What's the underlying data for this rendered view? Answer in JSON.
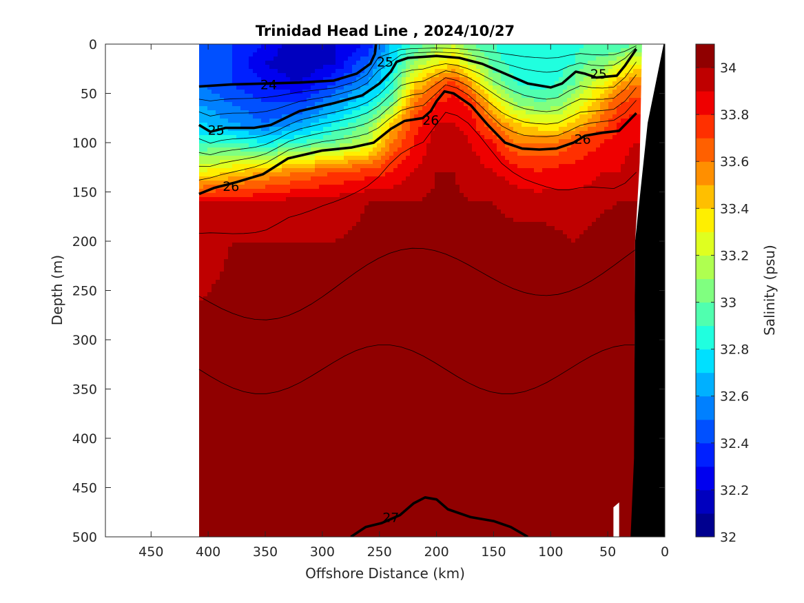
{
  "chart_data": {
    "type": "heatmap",
    "title": "Trinidad Head Line , 2024/10/27",
    "xlabel": "Offshore Distance (km)",
    "ylabel": "Depth (m)",
    "xlim": [
      490,
      0
    ],
    "ylim": [
      500,
      0
    ],
    "x_ticks": [
      "450",
      "400",
      "350",
      "300",
      "250",
      "200",
      "150",
      "100",
      "50",
      "0"
    ],
    "y_ticks": [
      "0",
      "50",
      "100",
      "150",
      "200",
      "250",
      "300",
      "350",
      "400",
      "450",
      "500"
    ],
    "colorbar": {
      "label": "Salinity (psu)",
      "range": [
        32,
        34.1
      ],
      "tick_labels": [
        "32",
        "32.2",
        "32.4",
        "32.6",
        "32.8",
        "33",
        "33.2",
        "33.4",
        "33.6",
        "33.8",
        "34"
      ],
      "colors": [
        "#00008f",
        "#0000bf",
        "#0000ef",
        "#0020ff",
        "#0050ff",
        "#0080ff",
        "#00b0ff",
        "#00e0ff",
        "#20ffdf",
        "#50ffaf",
        "#80ff80",
        "#afff50",
        "#dfff20",
        "#ffef00",
        "#ffbf00",
        "#ff8f00",
        "#ff6000",
        "#ff3000",
        "#ef0000",
        "#bf0000",
        "#900000"
      ]
    },
    "data_extent_km": [
      408,
      0
    ],
    "salinity_profiles": {
      "distance_km": [
        408,
        380,
        350,
        320,
        290,
        260,
        240,
        220,
        200,
        185,
        170,
        150,
        130,
        110,
        95,
        80,
        70,
        55,
        40,
        28
      ],
      "depth_m": [
        0,
        20,
        40,
        60,
        80,
        100,
        130,
        160,
        200,
        260,
        320,
        380,
        440,
        500
      ],
      "salinity_psu": [
        [
          32.5,
          32.5,
          32.5,
          32.6,
          32.7,
          32.9,
          33.3,
          33.9,
          33.95,
          34.0,
          34.05,
          34.1,
          34.12,
          34.15
        ],
        [
          32.4,
          32.4,
          32.4,
          32.5,
          32.6,
          32.9,
          33.4,
          33.9,
          34.0,
          34.02,
          34.05,
          34.1,
          34.12,
          34.15
        ],
        [
          32.3,
          32.2,
          32.3,
          32.4,
          32.5,
          32.8,
          33.5,
          33.9,
          34.0,
          34.02,
          34.05,
          34.1,
          34.12,
          34.15
        ],
        [
          32.1,
          32.1,
          32.2,
          32.4,
          32.6,
          32.9,
          33.6,
          33.95,
          34.0,
          34.02,
          34.05,
          34.1,
          34.15,
          34.18
        ],
        [
          32.2,
          32.2,
          32.4,
          32.6,
          32.8,
          33.0,
          33.7,
          33.95,
          34.0,
          34.02,
          34.1,
          34.12,
          34.15,
          34.18
        ],
        [
          32.3,
          32.5,
          32.6,
          32.8,
          33.0,
          33.2,
          33.75,
          34.0,
          34.02,
          34.05,
          34.12,
          34.15,
          34.18,
          34.2
        ],
        [
          32.7,
          32.75,
          32.85,
          33.0,
          33.4,
          33.6,
          33.8,
          34.0,
          34.02,
          34.08,
          34.12,
          34.12,
          34.15,
          34.18
        ],
        [
          32.9,
          33.1,
          33.4,
          33.6,
          33.75,
          33.8,
          33.9,
          34.0,
          34.05,
          34.1,
          34.12,
          34.15,
          34.18,
          34.2
        ],
        [
          33.1,
          33.3,
          33.6,
          33.8,
          33.9,
          33.95,
          34.0,
          34.02,
          34.05,
          34.12,
          34.12,
          34.15,
          34.2,
          34.2
        ],
        [
          33.2,
          33.4,
          33.75,
          33.85,
          33.9,
          33.95,
          34.0,
          34.02,
          34.05,
          34.08,
          34.1,
          34.15,
          34.18,
          34.2
        ],
        [
          33.0,
          33.2,
          33.5,
          33.75,
          33.85,
          33.9,
          33.95,
          34.0,
          34.05,
          34.12,
          34.12,
          34.15,
          34.18,
          34.2
        ],
        [
          32.9,
          32.95,
          33.1,
          33.4,
          33.6,
          33.8,
          33.9,
          34.0,
          34.05,
          34.15,
          34.12,
          34.15,
          34.18,
          34.2
        ],
        [
          32.8,
          32.85,
          32.9,
          33.1,
          33.4,
          33.6,
          33.85,
          33.95,
          34.05,
          34.15,
          34.12,
          34.15,
          34.18,
          34.2
        ],
        [
          32.8,
          32.82,
          32.85,
          33.0,
          33.3,
          33.6,
          33.8,
          33.95,
          34.05,
          34.1,
          34.15,
          34.15,
          34.18,
          34.2
        ],
        [
          32.8,
          32.85,
          32.9,
          33.05,
          33.3,
          33.6,
          33.85,
          33.95,
          34.02,
          34.08,
          34.12,
          34.15,
          34.18,
          34.2
        ],
        [
          32.85,
          32.9,
          33.0,
          33.2,
          33.4,
          33.7,
          33.85,
          33.95,
          34.0,
          34.05,
          34.12,
          34.15,
          34.18,
          34.2
        ],
        [
          32.9,
          33.0,
          33.15,
          33.3,
          33.5,
          33.75,
          33.85,
          33.95,
          34.02,
          34.12,
          34.12,
          34.15,
          34.2,
          34.2
        ],
        [
          32.9,
          33.05,
          33.3,
          33.5,
          33.65,
          33.8,
          33.9,
          33.98,
          34.05,
          34.12,
          34.15,
          34.18,
          34.2,
          34.2
        ],
        [
          32.9,
          33.2,
          33.5,
          33.7,
          33.8,
          33.85,
          33.9,
          34.0,
          34.05,
          34.1,
          34.15,
          34.18,
          34.2,
          34.2
        ],
        [
          33.0,
          33.3,
          33.6,
          33.75,
          33.85,
          33.9,
          33.95,
          34.0,
          34.05,
          34.1,
          34.15,
          34.18,
          34.2,
          34.2
        ]
      ]
    },
    "density_contours": [
      {
        "label": "24",
        "bold": true,
        "points": [
          [
            408,
            43
          ],
          [
            380,
            41
          ],
          [
            350,
            40
          ],
          [
            320,
            39
          ],
          [
            290,
            37
          ],
          [
            270,
            30
          ],
          [
            258,
            20
          ],
          [
            254,
            10
          ],
          [
            253,
            0
          ]
        ],
        "label_at": [
          347,
          41
        ]
      },
      {
        "label": "25",
        "bold": true,
        "points": [
          [
            408,
            82
          ],
          [
            398,
            89
          ],
          [
            385,
            85
          ],
          [
            360,
            85
          ],
          [
            345,
            82
          ],
          [
            320,
            68
          ],
          [
            290,
            60
          ],
          [
            265,
            52
          ],
          [
            250,
            40
          ],
          [
            240,
            28
          ],
          [
            235,
            18
          ],
          [
            225,
            14
          ],
          [
            200,
            12
          ],
          [
            180,
            14
          ],
          [
            160,
            20
          ],
          [
            140,
            30
          ],
          [
            120,
            40
          ],
          [
            100,
            44
          ],
          [
            90,
            40
          ],
          [
            78,
            28
          ],
          [
            70,
            30
          ],
          [
            60,
            34
          ],
          [
            42,
            32
          ],
          [
            35,
            22
          ],
          [
            25,
            5
          ]
        ],
        "label_at": [
          245,
          18
        ],
        "label_at_2": [
          393,
          87
        ],
        "label_at_3": [
          58,
          30
        ]
      },
      {
        "label": "26",
        "bold": true,
        "points": [
          [
            408,
            152
          ],
          [
            395,
            146
          ],
          [
            375,
            140
          ],
          [
            352,
            132
          ],
          [
            330,
            116
          ],
          [
            300,
            108
          ],
          [
            275,
            105
          ],
          [
            255,
            100
          ],
          [
            240,
            86
          ],
          [
            228,
            78
          ],
          [
            212,
            75
          ],
          [
            205,
            68
          ],
          [
            200,
            58
          ],
          [
            193,
            48
          ],
          [
            185,
            50
          ],
          [
            170,
            62
          ],
          [
            155,
            82
          ],
          [
            140,
            100
          ],
          [
            125,
            106
          ],
          [
            110,
            107
          ],
          [
            95,
            106
          ],
          [
            80,
            100
          ],
          [
            70,
            93
          ],
          [
            55,
            90
          ],
          [
            40,
            88
          ],
          [
            25,
            70
          ]
        ],
        "label_at": [
          380,
          144
        ],
        "label_at_2": [
          205,
          77
        ],
        "label_at_3": [
          72,
          96
        ]
      },
      {
        "label": "27",
        "bold": true,
        "points": [
          [
            275,
            500
          ],
          [
            262,
            490
          ],
          [
            248,
            486
          ],
          [
            232,
            478
          ],
          [
            220,
            466
          ],
          [
            210,
            460
          ],
          [
            200,
            462
          ],
          [
            190,
            472
          ],
          [
            170,
            480
          ],
          [
            150,
            484
          ],
          [
            135,
            490
          ],
          [
            120,
            500
          ]
        ],
        "label_at": [
          240,
          480
        ]
      }
    ],
    "annotations": [
      "24",
      "25",
      "25",
      "25",
      "26",
      "26",
      "26",
      "27"
    ]
  }
}
